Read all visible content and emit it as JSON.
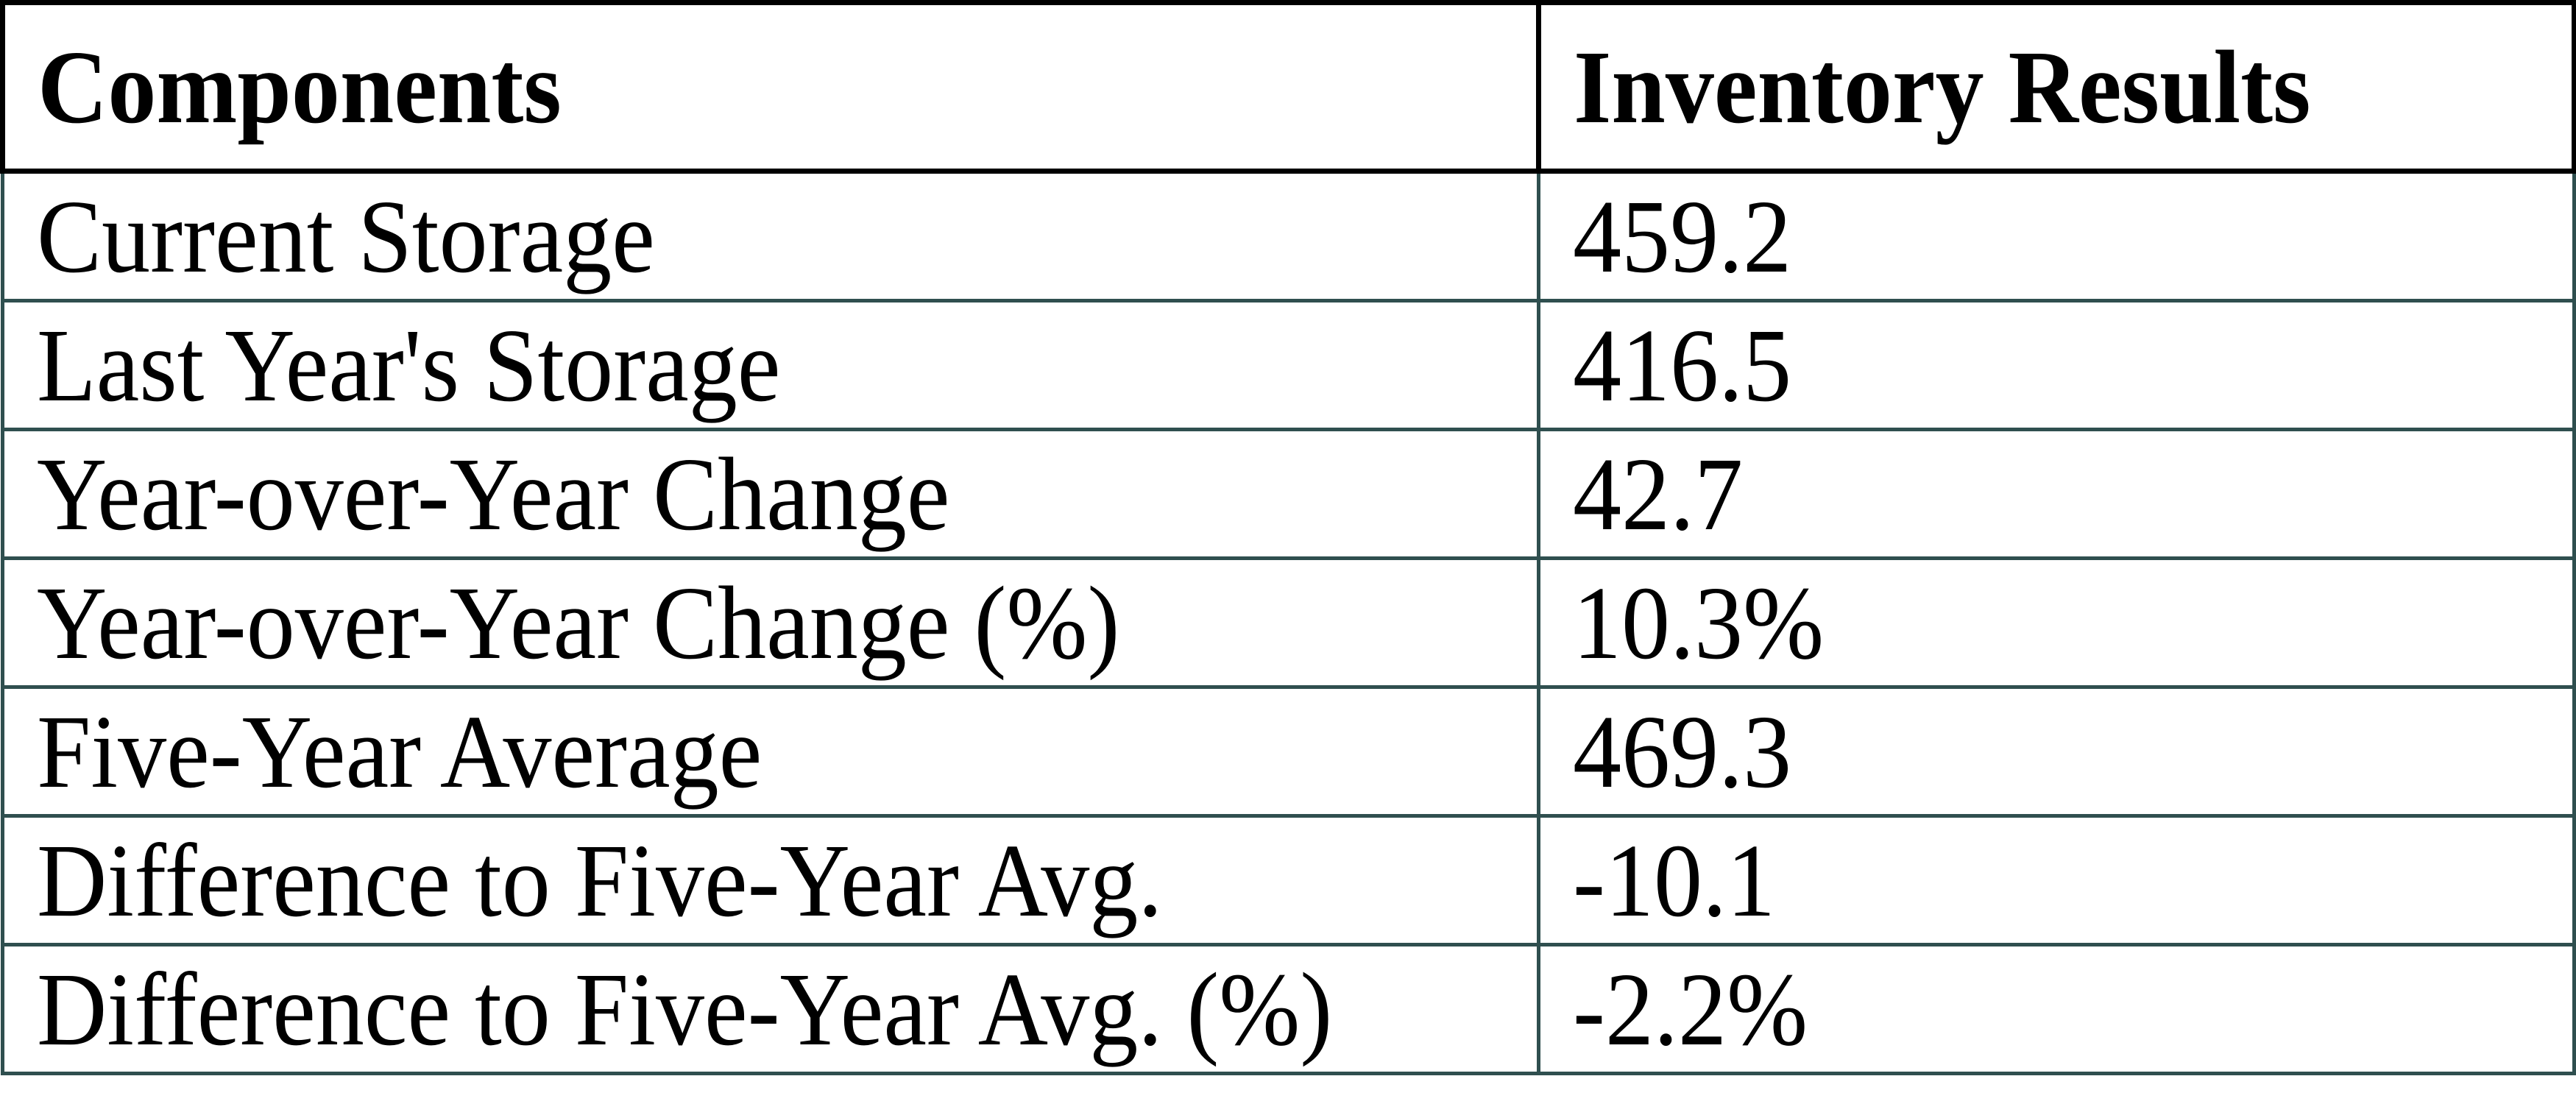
{
  "title": "Inventory Results Table",
  "colors": {
    "header_border": "#000000",
    "body_border": "#2F4F4F",
    "text": "#000000",
    "background": "#FFFFFF"
  },
  "table": {
    "headers": [
      "Components",
      "Inventory Results"
    ],
    "rows": [
      {
        "label": "Current Storage",
        "value": "459.2"
      },
      {
        "label": "Last Year's Storage",
        "value": "416.5"
      },
      {
        "label": "Year-over-Year Change",
        "value": "42.7"
      },
      {
        "label": "Year-over-Year Change (%)",
        "value": "10.3%"
      },
      {
        "label": "Five-Year Average",
        "value": "469.3"
      },
      {
        "label": "Difference to Five-Year Avg.",
        "value": "-10.1"
      },
      {
        "label": "Difference to Five-Year Avg. (%)",
        "value": "-2.2%"
      }
    ]
  },
  "chart_data": {
    "type": "table",
    "title": "Inventory Results",
    "columns": [
      "Components",
      "Inventory Results"
    ],
    "rows": [
      [
        "Current Storage",
        459.2
      ],
      [
        "Last Year's Storage",
        416.5
      ],
      [
        "Year-over-Year Change",
        42.7
      ],
      [
        "Year-over-Year Change (%)",
        "10.3%"
      ],
      [
        "Five-Year Average",
        469.3
      ],
      [
        "Difference to Five-Year Avg.",
        -10.1
      ],
      [
        "Difference to Five-Year Avg. (%)",
        "-2.2%"
      ]
    ]
  }
}
